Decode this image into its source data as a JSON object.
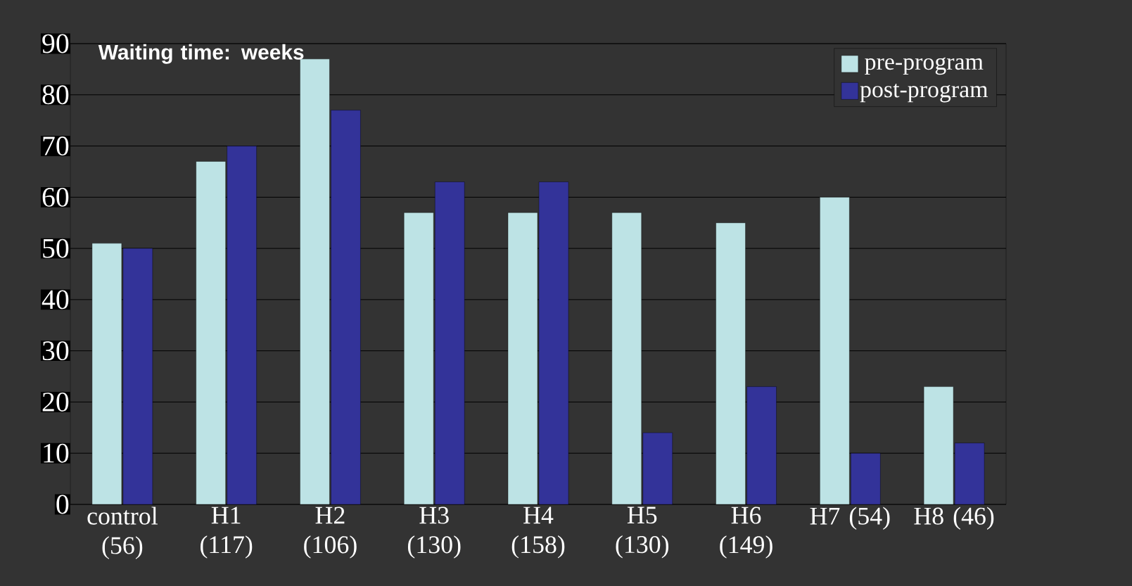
{
  "chart_data": {
    "type": "bar",
    "title": "Waiting time: weeks",
    "categories": [
      "control (56)",
      "H1 (117)",
      "H2 (106)",
      "H3 (130)",
      "H4 (158)",
      "H5 (130)",
      "H6 (149)",
      "H7 (54)",
      "H8 (46)"
    ],
    "series": [
      {
        "name": "pre-program",
        "color": "#bde3e5",
        "values": [
          51,
          67,
          87,
          57,
          57,
          57,
          55,
          60,
          23
        ]
      },
      {
        "name": "post-program",
        "color": "#333399",
        "values": [
          50,
          70,
          77,
          63,
          63,
          14,
          23,
          10,
          12
        ]
      }
    ],
    "ylim": [
      0,
      90
    ],
    "yticks": [
      0,
      10,
      20,
      30,
      40,
      50,
      60,
      70,
      80,
      90
    ],
    "grid": "y",
    "legend": "top right"
  }
}
